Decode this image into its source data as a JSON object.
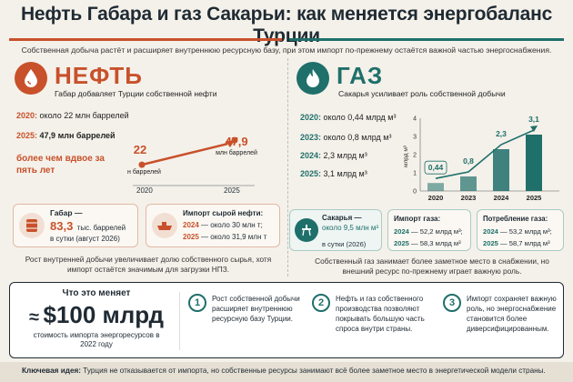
{
  "title": "Нефть Габара и газ Сакарьи: как меняется энергобаланс Турции",
  "subtitle": "Собственная добыча растёт и расширяет внутреннюю ресурсную базу, при этом импорт по-прежнему остаётся важной частью энергоснабжения.",
  "colors": {
    "oil": "#c8512b",
    "gas": "#1f6f6a",
    "dark": "#1f2a33"
  },
  "oil": {
    "heading": "НЕФТЬ",
    "tagline": "Габар добавляет Турции собственной нефти",
    "rows": [
      {
        "year": "2020:",
        "text": "около 22 млн баррелей"
      },
      {
        "year": "2025:",
        "text": "47,9 млн баррелей"
      }
    ],
    "highlight": "более чем вдвое за пять лет",
    "chart_data": {
      "type": "line",
      "x": [
        "2020",
        "2025"
      ],
      "y": [
        22,
        47.9
      ],
      "point_labels": [
        "22",
        "47,9"
      ],
      "point_units": [
        "млн баррелей",
        "млн баррелей"
      ]
    },
    "gabar_box": {
      "title": "Габар —",
      "value": "83,3",
      "unit": "тыс. баррелей",
      "line2": "в сутки (август 2026)"
    },
    "import_box": {
      "title": "Импорт сырой нефти:",
      "rows": [
        {
          "year": "2024",
          "text": "— около 30 млн т;"
        },
        {
          "year": "2025",
          "text": "— около 31,9 млн т"
        }
      ]
    },
    "caption": "Рост внутренней добычи увеличивает долю собственного сырья, хотя импорт остаётся значимым для загрузки НПЗ."
  },
  "gas": {
    "heading": "ГАЗ",
    "tagline": "Сакарья усиливает роль собственной добычи",
    "rows": [
      {
        "year": "2020:",
        "text": "около 0,44 млрд м³"
      },
      {
        "year": "2023:",
        "text": "около 0,8 млрд м³"
      },
      {
        "year": "2024:",
        "text": "2,3 млрд м³"
      },
      {
        "year": "2025:",
        "text": "3,1 млрд м³"
      }
    ],
    "chart_data": {
      "type": "bar",
      "categories": [
        "2020",
        "2023",
        "2024",
        "2025"
      ],
      "values": [
        0.44,
        0.8,
        2.3,
        3.1
      ],
      "value_labels": [
        "0,44",
        "0,8",
        "2,3",
        "3,1"
      ],
      "ylabel": "млрд м³",
      "ylim": [
        0,
        4
      ],
      "yticks": [
        "0",
        "1",
        "2",
        "3",
        "4"
      ]
    },
    "sakarya_box": {
      "title": "Сакарья —",
      "value": "около 9,5 млн м³",
      "line2": "в сутки (2026)"
    },
    "import_box": {
      "title": "Импорт газа:",
      "rows": [
        {
          "year": "2024",
          "text": "— 52,2 млрд м³;"
        },
        {
          "year": "2025",
          "text": "— 58,3 млрд м³"
        }
      ]
    },
    "consumption_box": {
      "title": "Потребление газа:",
      "rows": [
        {
          "year": "2024",
          "text": "— 53,2 млрд м³;"
        },
        {
          "year": "2025",
          "text": "— 58,7 млрд м³"
        }
      ]
    },
    "caption": "Собственный газ занимает более заметное место в снабжении, но внешний ресурс по-прежнему играет важную роль."
  },
  "changes": {
    "heading": "Что это меняет",
    "approx": "≈",
    "value": "$100 млрд",
    "caption": "стоимость импорта энергоресурсов в 2022 году",
    "points": [
      {
        "n": "1",
        "text": "Рост собственной добычи расширяет внутреннюю ресурсную базу Турции."
      },
      {
        "n": "2",
        "text": "Нефть и газ собственного производства позволяют покрывать большую часть спроса внутри страны."
      },
      {
        "n": "3",
        "text": "Импорт сохраняет важную роль, но энергоснабжение становится более диверсифицированным."
      }
    ]
  },
  "footer": {
    "label": "Ключевая идея:",
    "text": "Турция не отказывается от импорта, но собственные ресурсы занимают всё более заметное место в энергетической модели страны."
  }
}
